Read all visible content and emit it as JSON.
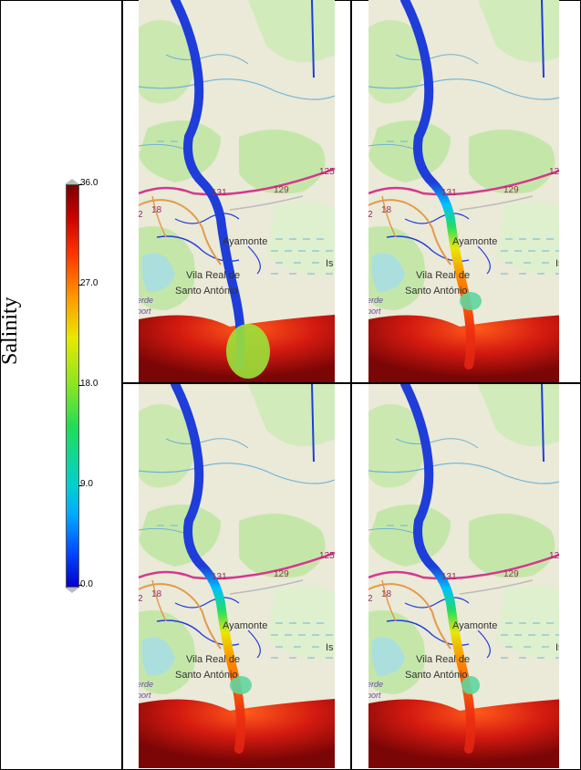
{
  "legend": {
    "title": "Salinity",
    "ticks": [
      "36.0",
      "27.0",
      "18.0",
      "9.0",
      "0.0"
    ],
    "min": 0.0,
    "max": 36.0
  },
  "map_labels": {
    "road_131": "131",
    "road_129": "129",
    "road_125": "125",
    "road_18": "18",
    "road_2": "2",
    "town_ayamonte": "Ayamonte",
    "town_vila_real_1": "Vila Real de",
    "town_vila_real_2": "Santo António",
    "place_is": "Is",
    "airport_1": "erde",
    "airport_2": "port"
  },
  "colors": {
    "land": "#e8e7d3",
    "green": "#c4e7a9",
    "sea": "#aadfde",
    "river_fresh": "#1f3dd8",
    "road_pink": "#d4398c",
    "road_orange": "#e39a4a",
    "ocean_salty": "#c01010",
    "border": "#000000"
  },
  "panels": [
    {
      "plume": "wide"
    },
    {
      "plume": "mid"
    },
    {
      "plume": "mid"
    },
    {
      "plume": "narrow"
    }
  ]
}
